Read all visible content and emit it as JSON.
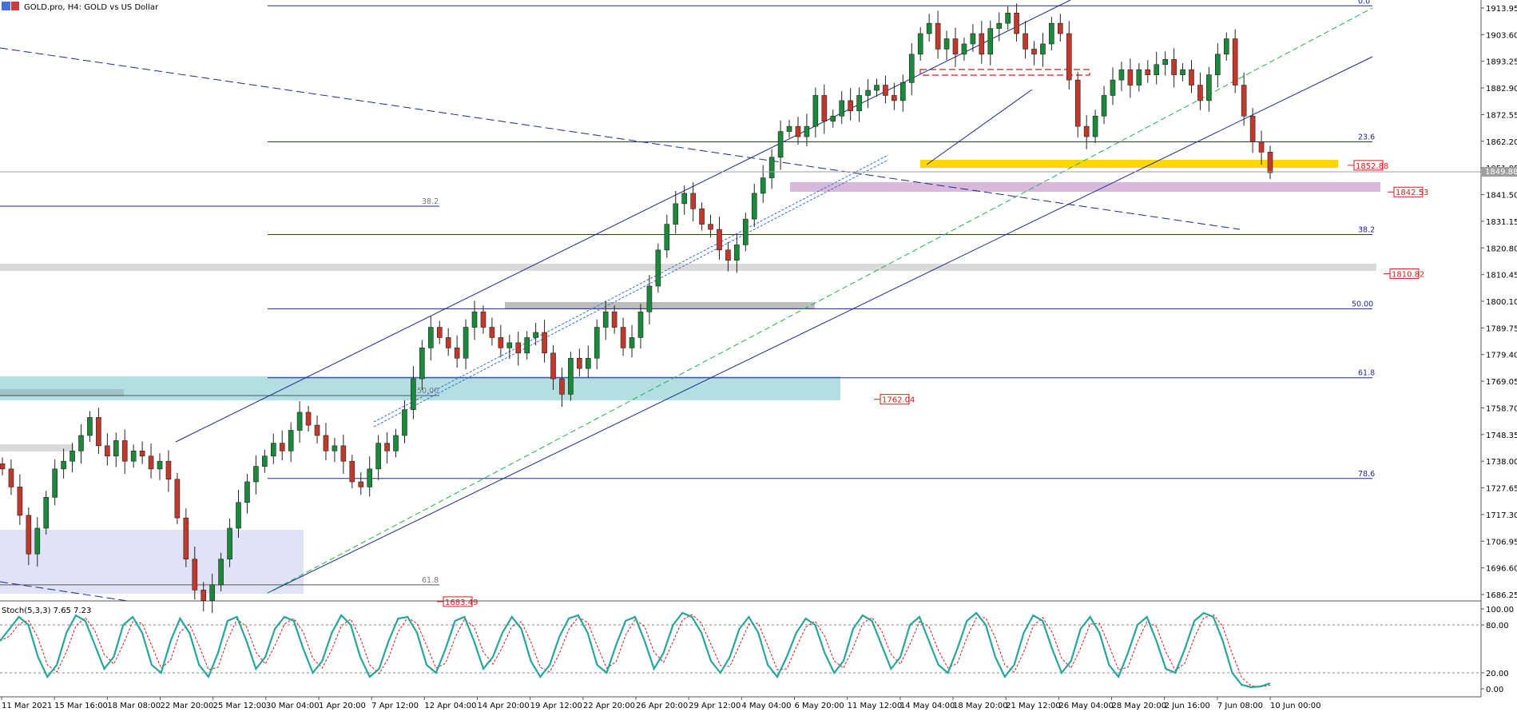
{
  "header": {
    "title": "GOLD.pro, H4:  GOLD vs US Dollar"
  },
  "chart_data": {
    "type": "candlestick",
    "symbol": "GOLD.pro",
    "timeframe": "H4",
    "ylim": [
      1680,
      1920
    ],
    "price_ticks": [
      "1913.95",
      "1903.60",
      "1893.25",
      "1882.90",
      "1872.55",
      "1862.20",
      "1851.85",
      "1841.50",
      "1831.15",
      "1820.80",
      "1810.45",
      "1800.10",
      "1789.75",
      "1779.40",
      "1769.05",
      "1758.70",
      "1748.35",
      "1738.00",
      "1727.65",
      "1717.30",
      "1706.95",
      "1696.60",
      "1686.25"
    ],
    "current_price_tag": "1849.88",
    "time_ticks": [
      "11 Mar 2021",
      "15 Mar 16:00",
      "18 Mar 08:00",
      "22 Mar 20:00",
      "25 Mar 12:00",
      "30 Mar 04:00",
      "1 Apr 20:00",
      "7 Apr 12:00",
      "12 Apr 04:00",
      "14 Apr 20:00",
      "19 Apr 12:00",
      "22 Apr 20:00",
      "26 Apr 20:00",
      "29 Apr 12:00",
      "4 May 04:00",
      "6 May 20:00",
      "11 May 12:00",
      "14 May 04:00",
      "18 May 20:00",
      "21 May 12:00",
      "26 May 04:00",
      "28 May 20:00",
      "2 Jun 16:00",
      "7 Jun 08:00",
      "10 Jun 00:00"
    ],
    "series": [
      {
        "name": "",
        "values": [
          1735,
          1728,
          1717,
          1702,
          1712,
          1724,
          1735,
          1738,
          1742,
          1748,
          1755,
          1744,
          1740,
          1746,
          1738,
          1742,
          1740,
          1735,
          1738,
          1731,
          1716,
          1700,
          1688,
          1684,
          1690,
          1700,
          1712,
          1722,
          1730,
          1736,
          1740,
          1745,
          1742,
          1750,
          1757,
          1752,
          1748,
          1742,
          1744,
          1738,
          1730,
          1728,
          1735,
          1745,
          1742,
          1748,
          1758,
          1770,
          1782,
          1790,
          1786,
          1782,
          1778,
          1790,
          1796,
          1790,
          1786,
          1782,
          1784,
          1780,
          1786,
          1788,
          1780,
          1770,
          1764,
          1778,
          1774,
          1778,
          1790,
          1796,
          1790,
          1782,
          1786,
          1796,
          1806,
          1820,
          1830,
          1838,
          1842,
          1836,
          1830,
          1828,
          1820,
          1816,
          1822,
          1832,
          1842,
          1848,
          1856,
          1866,
          1868,
          1864,
          1868,
          1880,
          1870,
          1872,
          1878,
          1874,
          1880,
          1882,
          1884,
          1880,
          1878,
          1885,
          1896,
          1904,
          1908,
          1898,
          1902,
          1896,
          1900,
          1904,
          1896,
          1906,
          1908,
          1912,
          1904,
          1898,
          1896,
          1900,
          1908,
          1904,
          1886,
          1868,
          1864,
          1872,
          1880,
          1886,
          1890,
          1884,
          1890,
          1888,
          1892,
          1894,
          1888,
          1890,
          1884,
          1878,
          1888,
          1896,
          1902,
          1884,
          1872,
          1862,
          1858,
          1850
        ]
      }
    ],
    "levels": [
      {
        "label": "0.0",
        "price": 1914.8
      },
      {
        "label": "23.6",
        "price": 1862.0
      },
      {
        "label": "38.2",
        "price": 1826.0
      },
      {
        "label": "50.00",
        "price": 1797.2
      },
      {
        "label": "61.8",
        "price": 1770.4
      },
      {
        "label": "78.6",
        "price": 1731.3
      },
      {
        "label": "38.2",
        "price": 1837.0
      },
      {
        "label": "50.00",
        "price": 1763.5
      },
      {
        "label": "61.8",
        "price": 1690.0
      }
    ],
    "price_tags": [
      "1852.88",
      "1842.53",
      "1810.82",
      "1762.04",
      "1683.49"
    ],
    "colors": {
      "bull_candle": "#1a8a3a",
      "bear_candle": "#c0392b",
      "channel_line": "#1c2a8c",
      "midline": "#22b14c",
      "stoch_main": "#26a69a",
      "stoch_signal": "#d81b1b",
      "support_zone": "#ffd700",
      "resistance_zone": "#d8b9dc",
      "demand_zone": "#b3dfe3",
      "low_zone": "#e0e2f7",
      "gray_zone": "#d9d9d9"
    },
    "indicator": {
      "label": "Stoch(5,3,3) 7.65 7.23",
      "ticks": [
        "100.00",
        "80.00",
        "20.00",
        "0.00"
      ],
      "main": [
        60,
        75,
        90,
        80,
        40,
        15,
        30,
        70,
        92,
        85,
        55,
        25,
        40,
        80,
        90,
        70,
        30,
        20,
        60,
        88,
        70,
        30,
        15,
        45,
        85,
        90,
        60,
        25,
        40,
        75,
        90,
        85,
        50,
        20,
        35,
        70,
        92,
        80,
        40,
        15,
        25,
        60,
        88,
        90,
        70,
        30,
        20,
        50,
        85,
        90,
        60,
        25,
        40,
        70,
        90,
        75,
        35,
        15,
        30,
        65,
        88,
        92,
        70,
        30,
        20,
        55,
        85,
        90,
        60,
        25,
        45,
        80,
        95,
        90,
        70,
        35,
        20,
        40,
        75,
        90,
        70,
        30,
        15,
        40,
        70,
        88,
        80,
        45,
        20,
        35,
        75,
        92,
        85,
        55,
        25,
        40,
        80,
        90,
        60,
        30,
        20,
        50,
        85,
        95,
        80,
        40,
        15,
        30,
        70,
        92,
        85,
        50,
        20,
        35,
        75,
        90,
        70,
        30,
        15,
        45,
        80,
        90,
        60,
        25,
        20,
        50,
        85,
        95,
        90,
        60,
        20,
        5,
        2,
        3,
        7
      ]
    }
  }
}
